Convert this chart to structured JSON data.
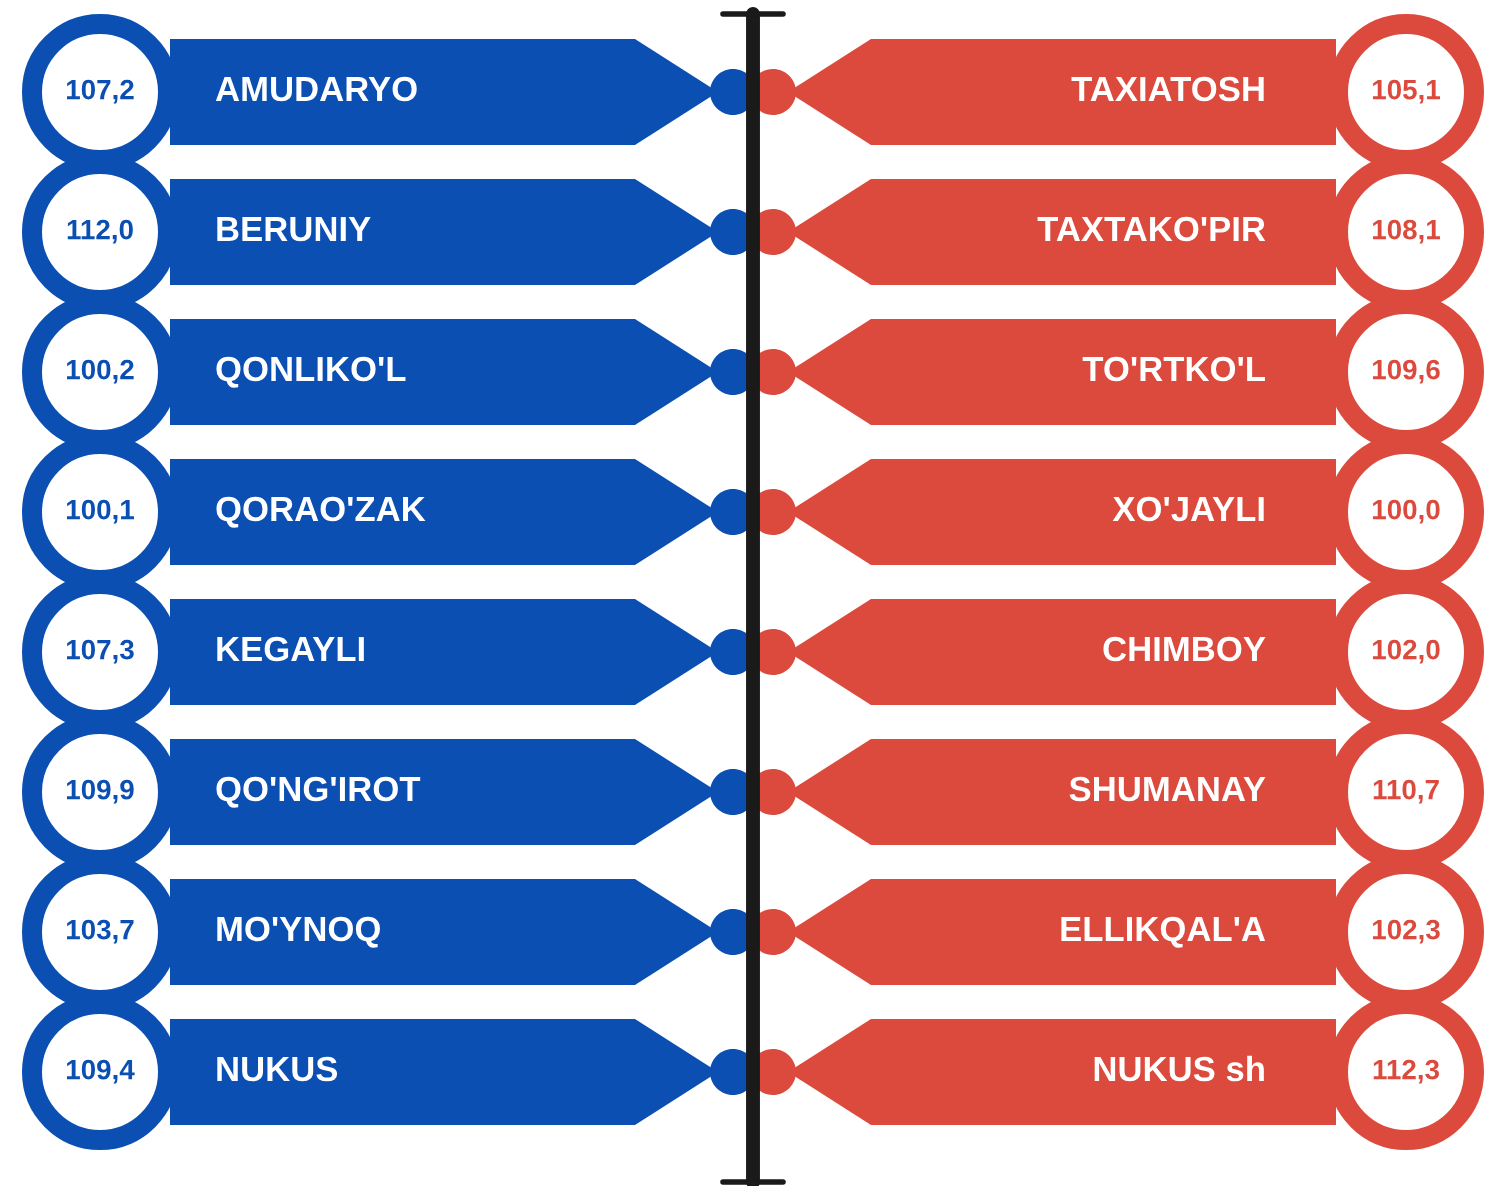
{
  "chart_data": [
    {
      "type": "other",
      "categories": [
        "AMUDARYO",
        "BERUNIY",
        "QONLIKO'L",
        "QORAO'ZAK",
        "KEGAYLI",
        "QO'NG'IROT",
        "MO'YNOQ",
        "NUKUS"
      ],
      "values": [
        107.2,
        112.0,
        100.2,
        100.1,
        107.3,
        109.9,
        103.7,
        109.4
      ],
      "value_labels": [
        "107,2",
        "112,0",
        "100,2",
        "100,1",
        "107,3",
        "109,9",
        "103,7",
        "109,4"
      ],
      "color": "#0b4fb3"
    },
    {
      "type": "other",
      "categories": [
        "TAXIATOSH",
        "TAXTAKO'PIR",
        "TO'RTKO'L",
        "XO'JAYLI",
        "CHIMBOY",
        "SHUMANAY",
        "ELLIKQAL'A",
        "NUKUS sh"
      ],
      "values": [
        105.1,
        108.1,
        109.6,
        100.0,
        102.0,
        110.7,
        102.3,
        112.3
      ],
      "value_labels": [
        "105,1",
        "108,1",
        "109,6",
        "100,0",
        "102,0",
        "110,7",
        "102,3",
        "112,3"
      ],
      "color": "#db4a3c"
    }
  ]
}
